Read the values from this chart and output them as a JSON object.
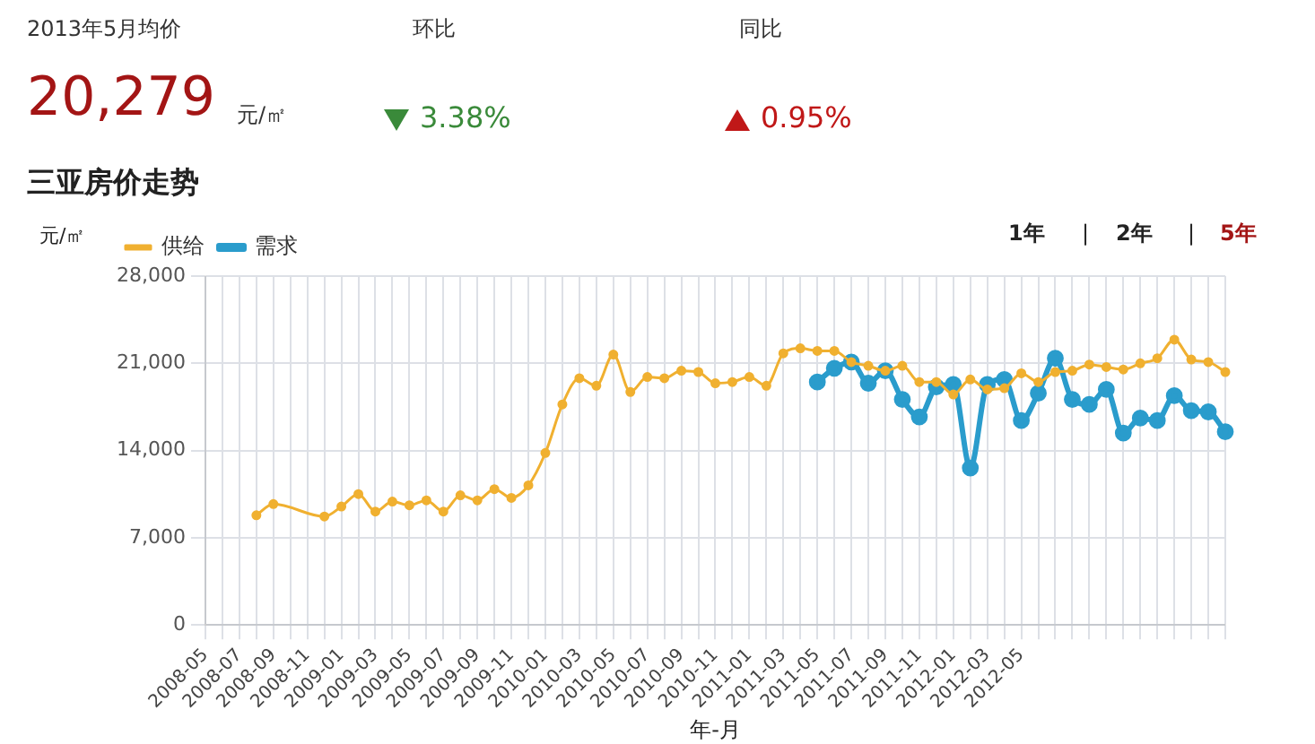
{
  "chart_data": {
    "type": "line",
    "title": "三亚房价走势",
    "xlabel": "年-月",
    "ylabel": "元/㎡",
    "annotations": [
      "2013年5月均价",
      "20,279",
      "元/㎡",
      "环比",
      "3.38%",
      "同比",
      "0.95%",
      "1年",
      "|",
      "2年",
      "|",
      "5年"
    ],
    "categories": [
      "2008-05",
      null,
      "2008-07",
      null,
      "2008-09",
      null,
      "2008-11",
      null,
      "2009-01",
      null,
      "2009-03",
      null,
      "2009-05",
      null,
      "2009-07",
      null,
      "2009-09",
      null,
      "2009-11",
      null,
      "2010-01",
      null,
      "2010-03",
      null,
      "2010-05",
      null,
      "2010-07",
      null,
      "2010-09",
      null,
      "2010-11",
      null,
      "2011-01",
      null,
      "2011-03",
      null,
      "2011-05",
      null,
      "2011-07",
      null,
      "2011-09",
      null,
      "2011-11",
      null,
      "2012-01",
      null,
      "2012-03",
      null,
      "2012-05",
      null,
      null,
      null,
      null,
      null,
      null,
      null,
      null,
      null,
      null,
      null,
      null
    ],
    "series": [
      {
        "name": "供给",
        "color": "#f0b030",
        "values": [
          null,
          null,
          null,
          8800,
          9700,
          null,
          null,
          8700,
          9500,
          10500,
          9100,
          9900,
          9600,
          10000,
          9100,
          10400,
          10000,
          10900,
          10200,
          11200,
          13800,
          17700,
          19800,
          19200,
          21700,
          18700,
          19900,
          19800,
          20400,
          20300,
          19400,
          19500,
          19900,
          19200,
          21800,
          22200,
          22000,
          22000,
          21100,
          20800,
          20400,
          20800,
          19500,
          19500,
          18500,
          19700,
          18900,
          19000,
          20200,
          19500,
          20300,
          20400,
          20900,
          20700,
          20500,
          21000,
          21400,
          22900,
          21300,
          21100,
          20300
        ]
      },
      {
        "name": "需求",
        "color": "#2a9ccc",
        "values": [
          null,
          null,
          null,
          null,
          null,
          null,
          null,
          null,
          null,
          null,
          null,
          null,
          null,
          null,
          null,
          null,
          null,
          null,
          null,
          null,
          null,
          null,
          null,
          null,
          null,
          null,
          null,
          null,
          null,
          null,
          null,
          null,
          null,
          null,
          null,
          null,
          19500,
          20600,
          21100,
          19400,
          20400,
          18100,
          16700,
          19100,
          19300,
          12600,
          19300,
          19700,
          16400,
          18600,
          21400,
          18100,
          17700,
          18900,
          15400,
          16600,
          16400,
          18400,
          17200,
          17100,
          15500
        ]
      }
    ],
    "ylim": [
      0,
      28000
    ],
    "yticks": [
      0,
      {
        "value": 7000,
        "label": "7,000"
      },
      {
        "value": 14000,
        "label": "14,000"
      },
      {
        "value": 21000,
        "label": "21,000"
      },
      {
        "value": 28000,
        "label": "28,000"
      }
    ],
    "grid": true,
    "legend": "top left",
    "marker": "circle",
    "line_style": "solid"
  }
}
